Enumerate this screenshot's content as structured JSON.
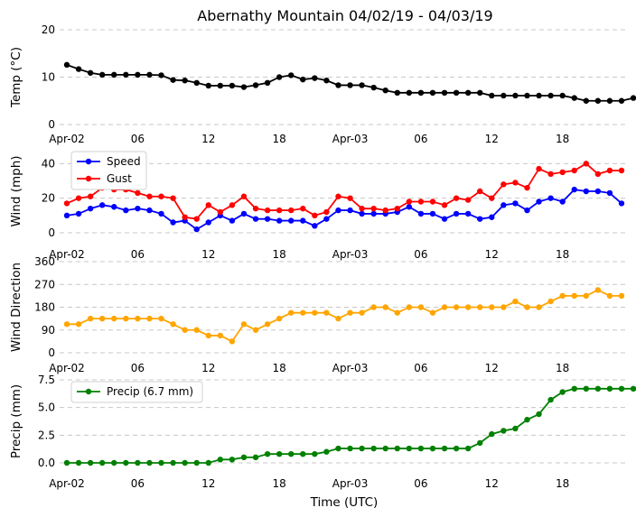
{
  "title": "Abernathy Mountain 04/02/19 - 04/03/19",
  "xlabel": "Time (UTC)",
  "x_tick_labels": [
    "Apr-02",
    "06",
    "12",
    "18",
    "Apr-03",
    "06",
    "12",
    "18"
  ],
  "x_tick_hours": [
    0,
    6,
    12,
    18,
    24,
    30,
    36,
    42
  ],
  "chart_data": [
    {
      "type": "line",
      "title": "Abernathy Mountain 04/02/19 - 04/03/19",
      "ylabel": "Temp (°C)",
      "ylim": [
        0,
        20
      ],
      "yticks": [
        0,
        10,
        20
      ],
      "ytick_labels": [
        "0",
        "10",
        "20"
      ],
      "grid": true,
      "x_hours_start": 0,
      "x_hours_step": 1,
      "series": [
        {
          "name": "Temp",
          "color": "#000000",
          "values": [
            12.6,
            11.7,
            10.9,
            10.5,
            10.5,
            10.5,
            10.5,
            10.5,
            10.4,
            9.4,
            9.3,
            8.8,
            8.2,
            8.2,
            8.2,
            7.9,
            8.3,
            8.8,
            10.0,
            10.4,
            9.5,
            9.8,
            9.3,
            8.3,
            8.3,
            8.3,
            7.8,
            7.2,
            6.7,
            6.7,
            6.7,
            6.7,
            6.7,
            6.7,
            6.7,
            6.7,
            6.1,
            6.1,
            6.1,
            6.1,
            6.1,
            6.1,
            6.1,
            5.6,
            5.0,
            5.0,
            5.0,
            5.0,
            5.6
          ]
        }
      ]
    },
    {
      "type": "line",
      "ylabel": "Wind (mph)",
      "ylim": [
        0,
        48
      ],
      "yticks": [
        0,
        20,
        40
      ],
      "ytick_labels": [
        "0",
        "20",
        "40"
      ],
      "grid": true,
      "legend": "top-left",
      "x_hours_start": 0,
      "x_hours_step": 1,
      "series": [
        {
          "name": "Speed",
          "color": "#0000ff",
          "values": [
            10,
            11,
            14,
            16,
            15,
            13,
            14,
            13,
            11,
            6,
            7,
            2,
            6,
            10,
            7,
            11,
            8,
            8,
            7,
            7,
            7,
            4,
            8,
            13,
            13,
            11,
            11,
            11,
            12,
            15,
            11,
            11,
            8,
            11,
            11,
            8,
            9,
            16,
            17,
            13,
            18,
            20,
            18,
            25,
            24,
            24,
            23,
            17
          ]
        },
        {
          "name": "Gust",
          "color": "#ff0000",
          "values": [
            17,
            20,
            21,
            26,
            25,
            25,
            23,
            21,
            21,
            20,
            9,
            8,
            16,
            12,
            16,
            21,
            14,
            13,
            13,
            13,
            14,
            10,
            12,
            21,
            20,
            14,
            14,
            13,
            14,
            18,
            18,
            18,
            16,
            20,
            19,
            24,
            20,
            28,
            29,
            26,
            37,
            34,
            35,
            36,
            40,
            34,
            36,
            36
          ]
        }
      ]
    },
    {
      "type": "line",
      "ylabel": "Wind Direction",
      "ylim": [
        0,
        360
      ],
      "yticks": [
        0,
        90,
        180,
        270,
        360
      ],
      "ytick_labels": [
        "0",
        "90",
        "180",
        "270",
        "360"
      ],
      "grid": true,
      "x_hours_start": 0,
      "x_hours_step": 1,
      "series": [
        {
          "name": "Direction",
          "color": "#ffa500",
          "values": [
            113,
            113,
            135,
            135,
            135,
            135,
            135,
            135,
            135,
            113,
            90,
            90,
            68,
            68,
            45,
            113,
            90,
            113,
            135,
            158,
            158,
            158,
            158,
            135,
            158,
            158,
            180,
            180,
            158,
            180,
            180,
            158,
            180,
            180,
            180,
            180,
            180,
            180,
            203,
            180,
            180,
            203,
            225,
            225,
            225,
            248,
            225,
            225
          ]
        }
      ]
    },
    {
      "type": "line",
      "ylabel": "Precip (mm)",
      "ylim": [
        0,
        7.5
      ],
      "yticks": [
        0,
        2.5,
        5.0,
        7.5
      ],
      "ytick_labels": [
        "0.0",
        "2.5",
        "5.0",
        "7.5"
      ],
      "grid": true,
      "legend": "top-left",
      "x_hours_start": 0,
      "x_hours_step": 1,
      "series": [
        {
          "name": "Precip (6.7 mm)",
          "color": "#008000",
          "values": [
            0,
            0,
            0,
            0,
            0,
            0,
            0,
            0,
            0,
            0,
            0,
            0,
            0,
            0.3,
            0.3,
            0.5,
            0.5,
            0.8,
            0.8,
            0.8,
            0.8,
            0.8,
            1.0,
            1.3,
            1.3,
            1.3,
            1.3,
            1.3,
            1.3,
            1.3,
            1.3,
            1.3,
            1.3,
            1.3,
            1.3,
            1.8,
            2.6,
            2.9,
            3.1,
            3.9,
            4.4,
            5.7,
            6.4,
            6.7,
            6.7,
            6.7,
            6.7,
            6.7,
            6.7
          ]
        }
      ]
    }
  ]
}
